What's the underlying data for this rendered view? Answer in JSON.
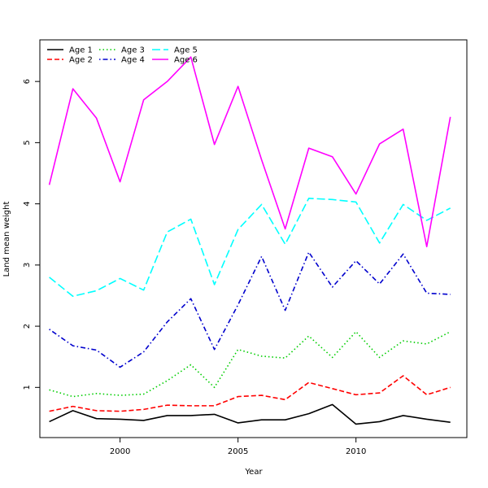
{
  "chart_data": {
    "type": "line",
    "title": "",
    "xlabel": "Year",
    "ylabel": "Land mean weight",
    "xlim": [
      1996.6,
      2014.7
    ],
    "ylim": [
      0.18,
      6.68
    ],
    "xticks": [
      2000,
      2005,
      2010
    ],
    "yticks": [
      1,
      2,
      3,
      4,
      5,
      6
    ],
    "x": [
      1997,
      1998,
      1999,
      2000,
      2001,
      2002,
      2003,
      2004,
      2005,
      2006,
      2007,
      2008,
      2009,
      2010,
      2011,
      2012,
      2013,
      2014
    ],
    "legend_position": "top-left",
    "series": [
      {
        "name": "Age 1",
        "color": "#000000",
        "dash": "solid",
        "values": [
          0.44,
          0.62,
          0.49,
          0.48,
          0.46,
          0.54,
          0.54,
          0.56,
          0.42,
          0.47,
          0.47,
          0.57,
          0.72,
          0.4,
          0.44,
          0.54,
          0.48,
          0.43
        ]
      },
      {
        "name": "Age 2",
        "color": "#ff0000",
        "dash": "dashed",
        "values": [
          0.61,
          0.69,
          0.62,
          0.61,
          0.64,
          0.71,
          0.7,
          0.7,
          0.85,
          0.87,
          0.8,
          1.08,
          0.98,
          0.88,
          0.91,
          1.19,
          0.88,
          1.0
        ]
      },
      {
        "name": "Age 3",
        "color": "#00cd00",
        "dash": "dotted",
        "values": [
          0.96,
          0.85,
          0.9,
          0.87,
          0.89,
          1.11,
          1.37,
          1.0,
          1.62,
          1.51,
          1.48,
          1.84,
          1.49,
          1.91,
          1.49,
          1.76,
          1.71,
          1.91
        ]
      },
      {
        "name": "Age 4",
        "color": "#0000cd",
        "dash": "dotdash",
        "values": [
          1.95,
          1.68,
          1.61,
          1.33,
          1.58,
          2.07,
          2.45,
          1.62,
          2.35,
          3.14,
          2.26,
          3.21,
          2.64,
          3.07,
          2.69,
          3.18,
          2.54,
          2.52
        ]
      },
      {
        "name": "Age 5",
        "color": "#00ffff",
        "dash": "longdash",
        "values": [
          2.8,
          2.49,
          2.58,
          2.78,
          2.59,
          3.54,
          3.75,
          2.68,
          3.58,
          3.99,
          3.34,
          4.09,
          4.07,
          4.03,
          3.36,
          3.99,
          3.73,
          3.93
        ]
      },
      {
        "name": "Age 6",
        "color": "#ff00ff",
        "dash": "solid",
        "values": [
          4.31,
          5.88,
          5.4,
          4.36,
          5.7,
          6.0,
          6.4,
          4.97,
          5.92,
          4.72,
          3.59,
          4.91,
          4.77,
          4.16,
          4.98,
          5.22,
          3.3,
          5.42
        ]
      }
    ]
  }
}
